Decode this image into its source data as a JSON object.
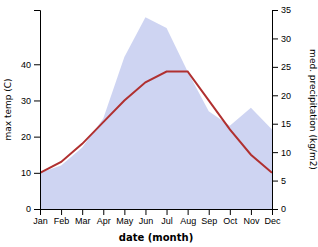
{
  "chart_data": {
    "type": "line",
    "xlabel": "date (month)",
    "ylabel": "max temp (C)",
    "y2label": "med. precipitation (kg/m2)",
    "categories": [
      "Jan",
      "Feb",
      "Mar",
      "Apr",
      "May",
      "Jun",
      "Jul",
      "Aug",
      "Sep",
      "Oct",
      "Nov",
      "Dec"
    ],
    "series": [
      {
        "type": "area",
        "color": "#c5cdf0",
        "values": [
          10,
          12,
          17,
          25,
          42,
          53,
          50,
          38,
          27,
          23,
          28,
          22
        ]
      },
      {
        "type": "line",
        "color": "#b03030",
        "values": [
          10,
          13,
          18,
          24,
          30,
          35,
          38,
          38,
          30,
          22,
          15,
          10
        ]
      }
    ],
    "ylim": [
      0,
      55
    ],
    "yticks": [
      0,
      10,
      20,
      30,
      40
    ],
    "y2lim": [
      0,
      35
    ],
    "y2ticks": [
      0,
      5,
      10,
      15,
      20,
      25,
      30,
      35
    ],
    "grid": false
  }
}
